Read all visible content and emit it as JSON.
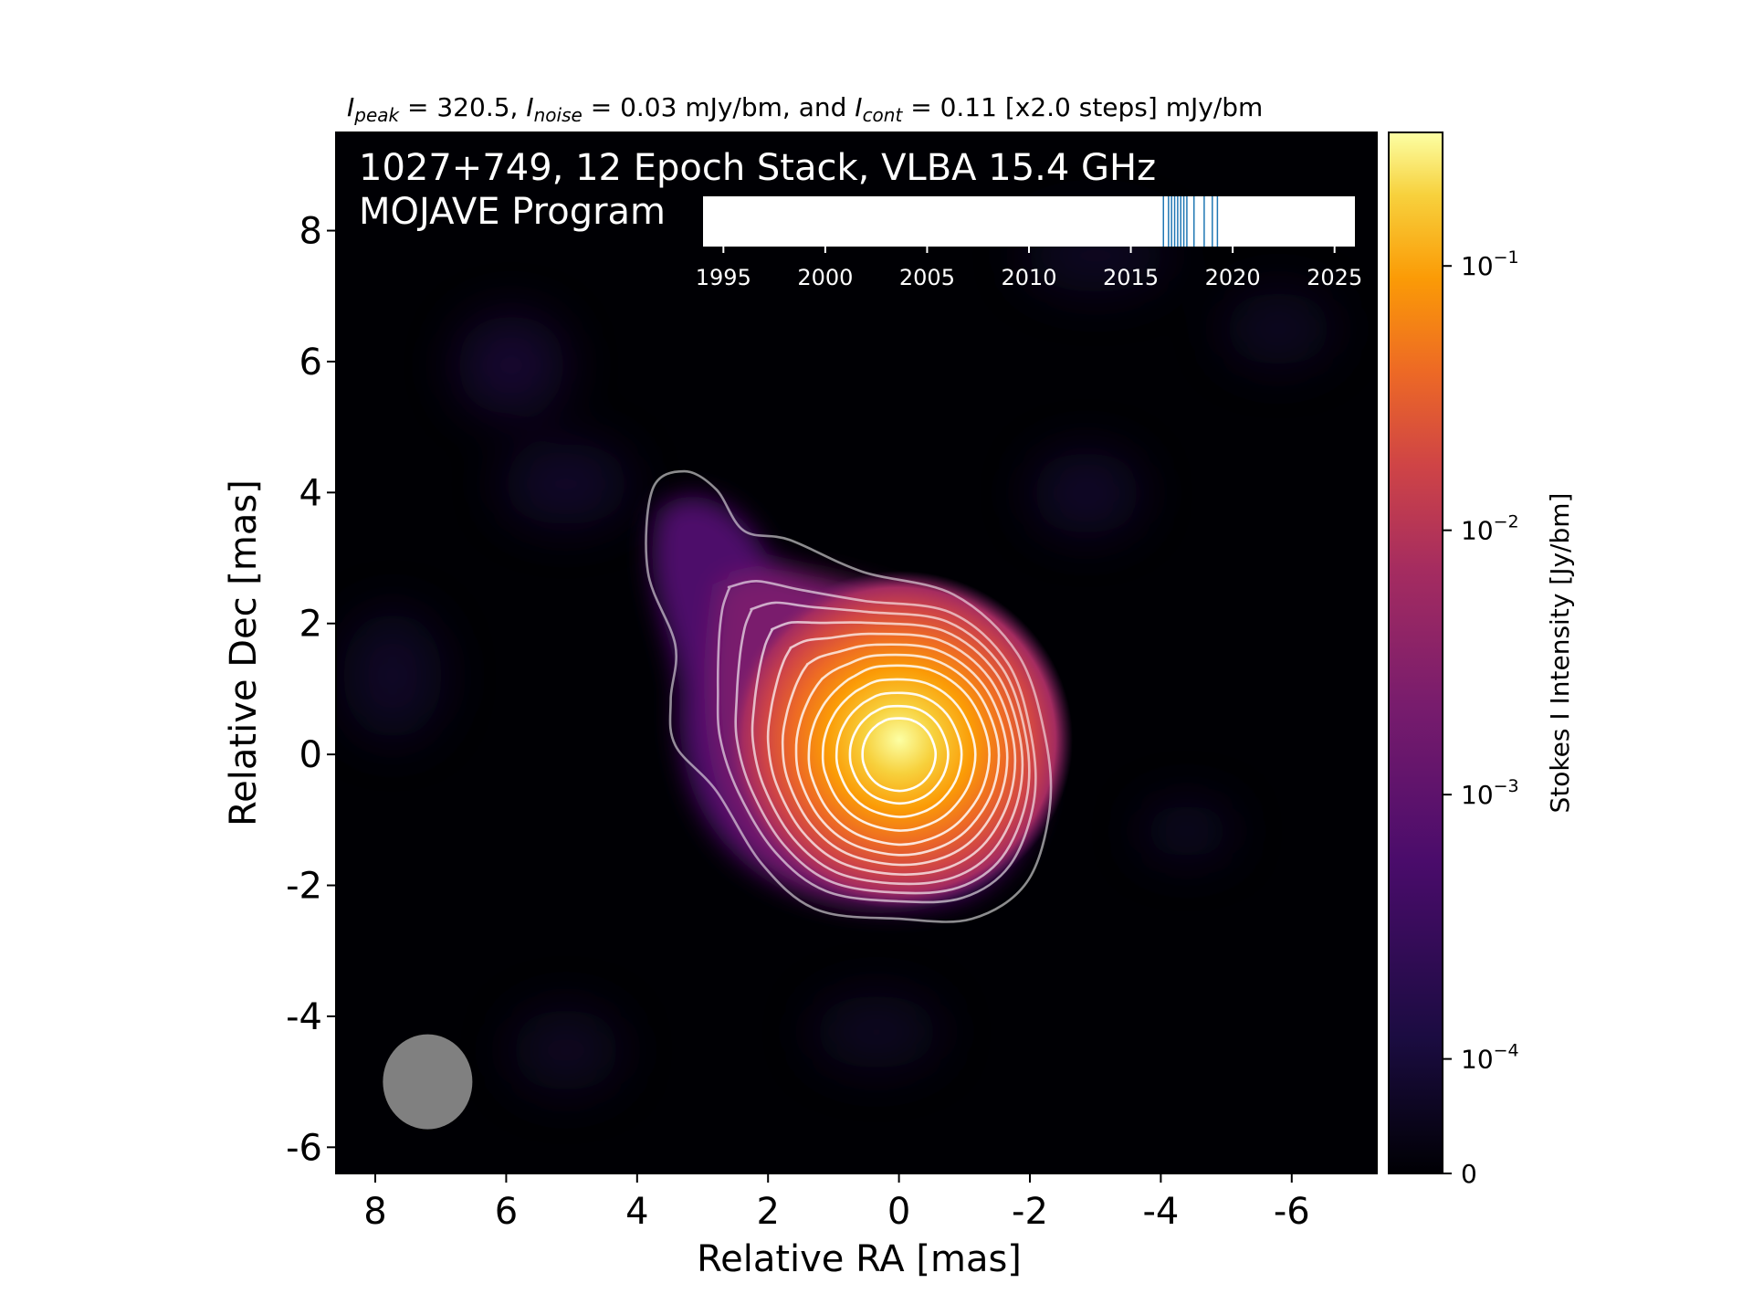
{
  "chart_data": {
    "type": "heatmap",
    "header": {
      "peak_sym": "I",
      "peak_sub": "peak",
      "peak_text": " = 320.5, ",
      "noise_sym": "I",
      "noise_sub": "noise",
      "noise_text": " = 0.03 mJy/bm, and ",
      "cont_sym": "I",
      "cont_sub": "cont",
      "cont_text": " = 0.11 [x2.0 steps] mJy/bm"
    },
    "title_line1": "1027+749, 12 Epoch Stack, VLBA 15.4 GHz",
    "title_line2": "MOJAVE Program",
    "xlabel": "Relative RA [mas]",
    "ylabel": "Relative Dec [mas]",
    "xlim": [
      8.6,
      -7.3
    ],
    "ylim": [
      -6.4,
      9.5
    ],
    "x_ticks": [
      8,
      6,
      4,
      2,
      0,
      -2,
      -4,
      -6
    ],
    "x_tick_labels": [
      "8",
      "6",
      "4",
      "2",
      "0",
      "-2",
      "-4",
      "-6"
    ],
    "y_ticks": [
      8,
      6,
      4,
      2,
      0,
      -2,
      -4,
      -6
    ],
    "y_tick_labels": [
      "8",
      "6",
      "4",
      "2",
      "0",
      "-2",
      "-4",
      "-6"
    ],
    "colorbar": {
      "label": "Stokes I Intensity [Jy/bm]",
      "colormap": "inferno",
      "scale": "log",
      "ticks": [
        {
          "value": 0,
          "label": "0"
        },
        {
          "value": 0.0001,
          "base": "10",
          "exp": "−4"
        },
        {
          "value": 0.001,
          "base": "10",
          "exp": "−3"
        },
        {
          "value": 0.01,
          "base": "10",
          "exp": "−2"
        },
        {
          "value": 0.1,
          "base": "10",
          "exp": "−1"
        }
      ]
    },
    "peak_position": [
      0,
      0
    ],
    "contour_levels_count": 12,
    "beam": {
      "center": [
        7.2,
        -5.0
      ],
      "color": "#808080"
    },
    "timeline": {
      "xlim": [
        1994,
        2026
      ],
      "ticks": [
        1995,
        2000,
        2005,
        2010,
        2015,
        2020,
        2025
      ],
      "tick_labels": [
        "1995",
        "2000",
        "2005",
        "2010",
        "2015",
        "2020",
        "2025"
      ],
      "epochs": [
        2016.6,
        2016.85,
        2017.0,
        2017.15,
        2017.3,
        2017.45,
        2017.6,
        2017.75,
        2018.1,
        2018.6,
        2019.0,
        2019.25
      ],
      "epoch_color": "#1f77b4"
    },
    "colors": {
      "contour": "#ffffff",
      "background": "#000004"
    }
  }
}
